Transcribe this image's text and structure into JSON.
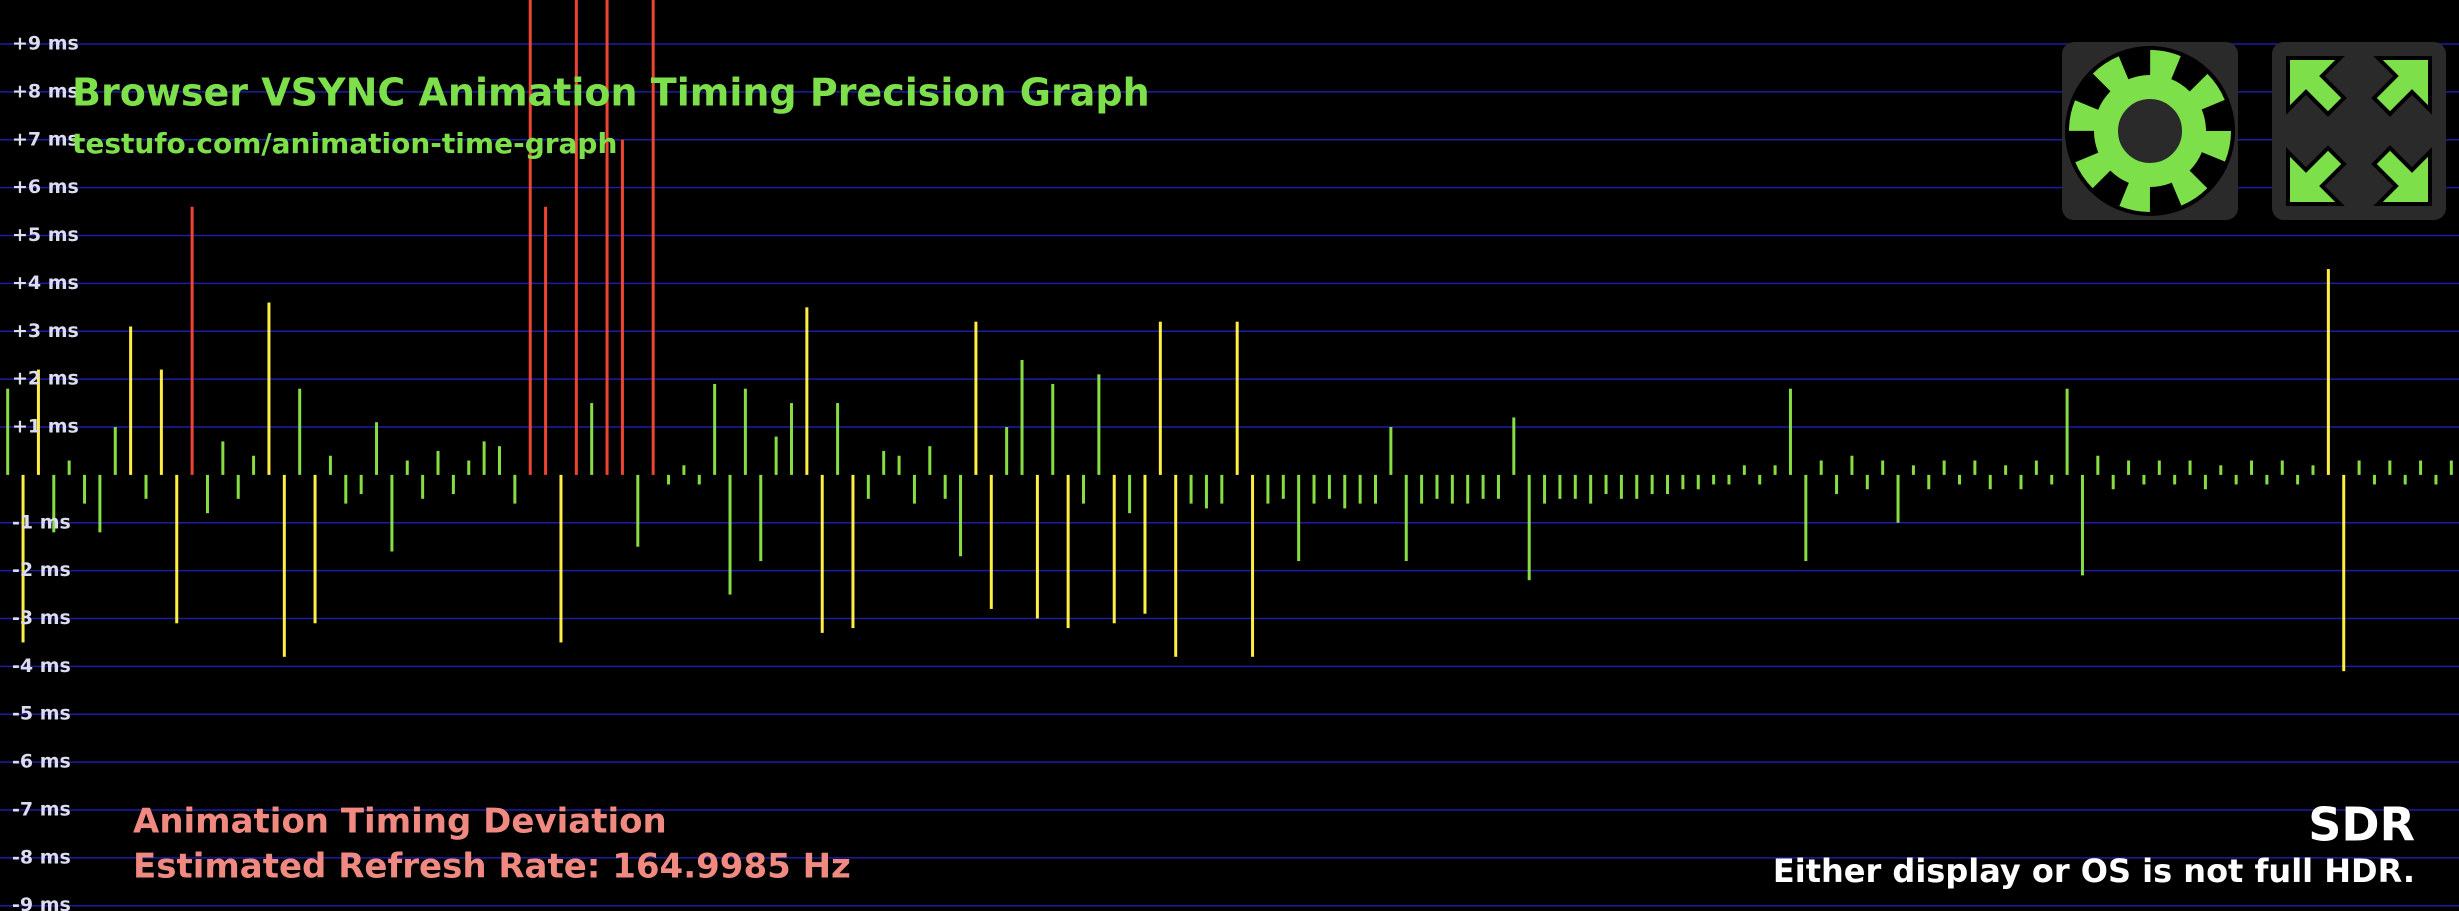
{
  "chart_data": {
    "type": "bar",
    "title": "Browser VSYNC Animation Timing Precision Graph",
    "subtitle": "testufo.com/animation-time-graph",
    "annotations": [
      "Animation Timing Deviation",
      "Estimated Refresh Rate: 164.9985 Hz"
    ],
    "ylim": [
      -9.11,
      9.92
    ],
    "yticks": [
      {
        "value": 9,
        "label": "+9 ms"
      },
      {
        "value": 8,
        "label": "+8 ms"
      },
      {
        "value": 7,
        "label": "+7 ms"
      },
      {
        "value": 6,
        "label": "+6 ms"
      },
      {
        "value": 5,
        "label": "+5 ms"
      },
      {
        "value": 4,
        "label": "+4 ms"
      },
      {
        "value": 3,
        "label": "+3 ms"
      },
      {
        "value": 2,
        "label": "+2 ms"
      },
      {
        "value": 1,
        "label": "+1 ms"
      },
      {
        "value": -1,
        "label": "-1 ms"
      },
      {
        "value": -2,
        "label": "-2 ms"
      },
      {
        "value": -3,
        "label": "-3 ms"
      },
      {
        "value": -4,
        "label": "-4 ms"
      },
      {
        "value": -5,
        "label": "-5 ms"
      },
      {
        "value": -6,
        "label": "-6 ms"
      },
      {
        "value": -7,
        "label": "-7 ms"
      },
      {
        "value": -8,
        "label": "-8 ms"
      },
      {
        "value": -9,
        "label": "-9 ms"
      }
    ],
    "grid": true,
    "grid_color": "#1c1ca8",
    "values": [
      1.8,
      -3.5,
      2.2,
      -1.2,
      0.3,
      -0.6,
      -1.2,
      1.0,
      3.1,
      -0.5,
      2.2,
      -3.1,
      5.6,
      -0.8,
      0.7,
      -0.5,
      0.4,
      3.6,
      -3.8,
      1.8,
      -3.1,
      0.4,
      -0.6,
      -0.4,
      1.1,
      -1.6,
      0.3,
      -0.5,
      0.5,
      -0.4,
      0.3,
      0.7,
      0.6,
      -0.6,
      10.5,
      5.6,
      -3.5,
      10.5,
      1.5,
      10.0,
      7.0,
      -1.5,
      10.5,
      -0.2,
      0.2,
      -0.2,
      1.9,
      -2.5,
      1.8,
      -1.8,
      0.8,
      1.5,
      3.5,
      -3.3,
      1.5,
      -3.2,
      -0.5,
      0.5,
      0.4,
      -0.6,
      0.6,
      -0.5,
      -1.7,
      3.2,
      -2.8,
      1.0,
      2.4,
      -3.0,
      1.9,
      -3.2,
      -0.6,
      2.1,
      -3.1,
      -0.8,
      -2.9,
      3.2,
      -3.8,
      -0.6,
      -0.7,
      -0.6,
      3.2,
      -3.8,
      -0.6,
      -0.5,
      -1.8,
      -0.6,
      -0.5,
      -0.7,
      -0.6,
      -0.6,
      1.0,
      -1.8,
      -0.6,
      -0.5,
      -0.6,
      -0.6,
      -0.5,
      -0.5,
      1.2,
      -2.2,
      -0.6,
      -0.5,
      -0.5,
      -0.6,
      -0.4,
      -0.5,
      -0.5,
      -0.4,
      -0.4,
      -0.3,
      -0.3,
      -0.2,
      -0.2,
      0.2,
      -0.2,
      0.2,
      1.8,
      -1.8,
      0.3,
      -0.4,
      0.4,
      -0.3,
      0.3,
      -1.0,
      0.2,
      -0.3,
      0.3,
      -0.2,
      0.3,
      -0.3,
      0.2,
      -0.3,
      0.3,
      -0.2,
      1.8,
      -2.1,
      0.4,
      -0.3,
      0.3,
      -0.2,
      0.3,
      -0.2,
      0.3,
      -0.3,
      0.2,
      -0.2,
      0.3,
      -0.2,
      0.3,
      -0.2,
      0.2,
      4.3,
      -4.1,
      0.3,
      -0.2,
      0.3,
      -0.2,
      0.3,
      -0.2,
      0.3
    ],
    "colors": [
      "#8d4",
      "#fe4",
      "#fe4",
      "#8d4",
      "#8d4",
      "#8d4",
      "#8d4",
      "#8d4",
      "#fe4",
      "#8d4",
      "#fe4",
      "#fe4",
      "#e43",
      "#8d4",
      "#8d4",
      "#8d4",
      "#8d4",
      "#fe4",
      "#fe4",
      "#8d4",
      "#fe4",
      "#8d4",
      "#8d4",
      "#8d4",
      "#8d4",
      "#8d4",
      "#8d4",
      "#8d4",
      "#8d4",
      "#8d4",
      "#8d4",
      "#8d4",
      "#8d4",
      "#8d4",
      "#e43",
      "#e43",
      "#fe4",
      "#e43",
      "#8d4",
      "#e43",
      "#e43",
      "#8d4",
      "#e43",
      "#8d4",
      "#8d4",
      "#8d4",
      "#8d4",
      "#8d4",
      "#8d4",
      "#8d4",
      "#8d4",
      "#8d4",
      "#fe4",
      "#fe4",
      "#8d4",
      "#fe4",
      "#8d4",
      "#8d4",
      "#8d4",
      "#8d4",
      "#8d4",
      "#8d4",
      "#8d4",
      "#fe4",
      "#fe4",
      "#8d4",
      "#8d4",
      "#fe4",
      "#8d4",
      "#fe4",
      "#8d4",
      "#8d4",
      "#fe4",
      "#8d4",
      "#fe4",
      "#fe4",
      "#fe4",
      "#8d4",
      "#8d4",
      "#8d4",
      "#fe4",
      "#fe4",
      "#8d4",
      "#8d4",
      "#8d4",
      "#8d4",
      "#8d4",
      "#8d4",
      "#8d4",
      "#8d4",
      "#8d4",
      "#8d4",
      "#8d4",
      "#8d4",
      "#8d4",
      "#8d4",
      "#8d4",
      "#8d4",
      "#8d4",
      "#8d4",
      "#8d4",
      "#8d4",
      "#8d4",
      "#8d4",
      "#8d4",
      "#8d4",
      "#8d4",
      "#8d4",
      "#8d4",
      "#8d4",
      "#8d4",
      "#8d4",
      "#8d4",
      "#8d4",
      "#8d4",
      "#8d4",
      "#8d4",
      "#8d4",
      "#8d4",
      "#8d4",
      "#8d4",
      "#8d4",
      "#8d4",
      "#8d4",
      "#8d4",
      "#8d4",
      "#8d4",
      "#8d4",
      "#8d4",
      "#8d4",
      "#8d4",
      "#8d4",
      "#8d4",
      "#8d4",
      "#8d4",
      "#8d4",
      "#8d4",
      "#8d4",
      "#8d4",
      "#8d4",
      "#8d4",
      "#8d4",
      "#8d4",
      "#8d4",
      "#8d4",
      "#8d4",
      "#8d4",
      "#8d4",
      "#8d4",
      "#8d4",
      "#8d4",
      "#fe4",
      "#fe4",
      "#8d4",
      "#8d4",
      "#8d4",
      "#8d4",
      "#8d4",
      "#8d4",
      "#8d4"
    ]
  },
  "hdr_status": {
    "mode": "SDR",
    "message": "Either display or OS is not full HDR."
  }
}
